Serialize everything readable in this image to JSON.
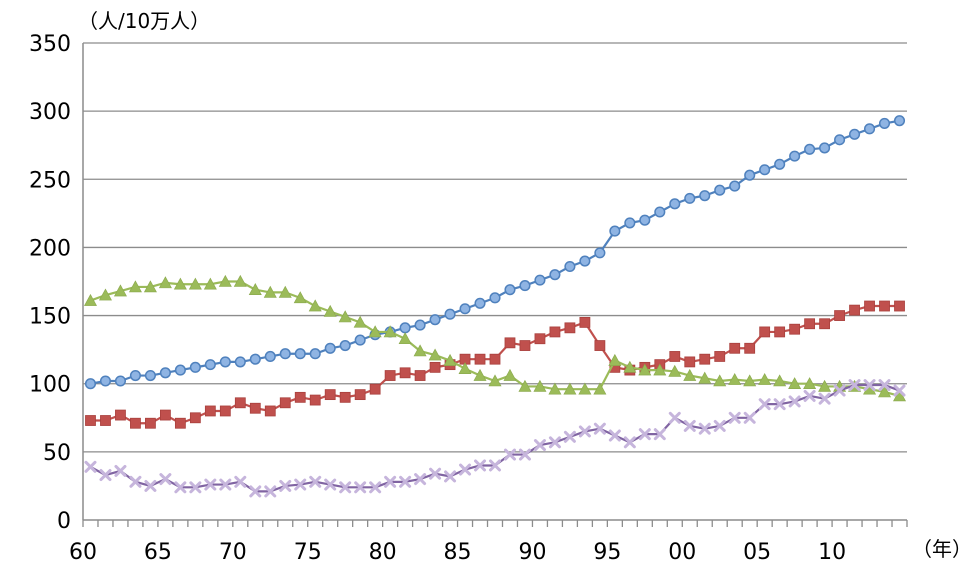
{
  "chart_data": {
    "type": "line",
    "y_unit_label": "（人/10万人）",
    "x_unit_label": "（年）",
    "ylim": [
      0,
      350
    ],
    "y_ticks": [
      0,
      50,
      100,
      150,
      200,
      250,
      300,
      350
    ],
    "x_tick_labels": [
      "60",
      "65",
      "70",
      "75",
      "80",
      "85",
      "90",
      "95",
      "00",
      "05",
      "10"
    ],
    "grid": true,
    "legend": "none",
    "x": [
      1960,
      1961,
      1962,
      1963,
      1964,
      1965,
      1966,
      1967,
      1968,
      1969,
      1970,
      1971,
      1972,
      1973,
      1974,
      1975,
      1976,
      1977,
      1978,
      1979,
      1980,
      1981,
      1982,
      1983,
      1984,
      1985,
      1986,
      1987,
      1988,
      1989,
      1990,
      1991,
      1992,
      1993,
      1994,
      1995,
      1996,
      1997,
      1998,
      1999,
      2000,
      2001,
      2002,
      2003,
      2004,
      2005,
      2006,
      2007,
      2008,
      2009,
      2010,
      2011,
      2012,
      2013,
      2014
    ],
    "series": [
      {
        "color": "#4f81bd",
        "marker": "circle",
        "values": [
          100,
          102,
          102,
          106,
          106,
          108,
          110,
          112,
          114,
          116,
          116,
          118,
          120,
          122,
          122,
          122,
          126,
          128,
          132,
          136,
          138,
          141,
          143,
          147,
          151,
          155,
          159,
          163,
          169,
          172,
          176,
          180,
          186,
          190,
          196,
          212,
          218,
          220,
          226,
          232,
          236,
          238,
          242,
          245,
          253,
          257,
          261,
          267,
          272,
          273,
          279,
          283,
          287,
          291,
          293
        ]
      },
      {
        "color": "#c0504d",
        "marker": "square",
        "values": [
          73,
          73,
          77,
          71,
          71,
          77,
          71,
          75,
          80,
          80,
          86,
          82,
          80,
          86,
          90,
          88,
          92,
          90,
          92,
          96,
          106,
          108,
          106,
          112,
          114,
          118,
          118,
          118,
          130,
          128,
          133,
          138,
          141,
          145,
          128,
          112,
          110,
          112,
          114,
          120,
          116,
          118,
          120,
          126,
          126,
          138,
          138,
          140,
          144,
          144,
          150,
          154,
          157,
          157,
          157
        ]
      },
      {
        "color": "#9bbb59",
        "marker": "triangle",
        "values": [
          161,
          165,
          168,
          171,
          171,
          174,
          173,
          173,
          173,
          175,
          175,
          169,
          167,
          167,
          163,
          157,
          153,
          149,
          145,
          138,
          138,
          133,
          124,
          121,
          117,
          111,
          106,
          102,
          106,
          98,
          98,
          96,
          96,
          96,
          96,
          117,
          112,
          110,
          110,
          109,
          106,
          104,
          102,
          103,
          102,
          103,
          102,
          100,
          100,
          98,
          98,
          98,
          96,
          94,
          91
        ]
      },
      {
        "color": "#8064a2",
        "marker": "x",
        "values": [
          39,
          33,
          36,
          28,
          25,
          30,
          24,
          24,
          26,
          26,
          28,
          21,
          21,
          25,
          26,
          28,
          26,
          24,
          24,
          24,
          28,
          28,
          30,
          34,
          32,
          37,
          40,
          40,
          48,
          48,
          55,
          57,
          61,
          65,
          67,
          62,
          57,
          63,
          63,
          75,
          69,
          67,
          69,
          75,
          75,
          85,
          85,
          87,
          91,
          89,
          95,
          99,
          99,
          99,
          95
        ]
      }
    ]
  }
}
